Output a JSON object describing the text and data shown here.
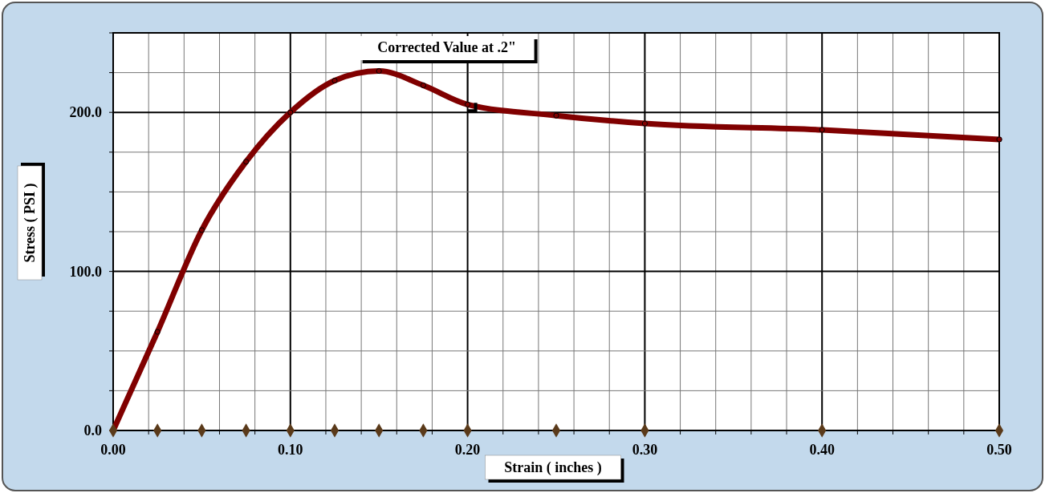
{
  "chart_data": {
    "type": "line",
    "xlabel": "Strain ( inches )",
    "ylabel": "Stress ( PSI )",
    "annotations": [
      {
        "text": "Corrected Value at .2\"",
        "x": 0.2,
        "y": 205
      }
    ],
    "xlim": [
      0,
      0.5
    ],
    "ylim": [
      0,
      250
    ],
    "xticks": [
      {
        "value": 0,
        "label": "0.00"
      },
      {
        "value": 0.02,
        "label": null
      },
      {
        "value": 0.04,
        "label": null
      },
      {
        "value": 0.06,
        "label": null
      },
      {
        "value": 0.08,
        "label": null
      },
      {
        "value": 0.1,
        "label": "0.10"
      },
      {
        "value": 0.12,
        "label": null
      },
      {
        "value": 0.14,
        "label": null
      },
      {
        "value": 0.16,
        "label": null
      },
      {
        "value": 0.18,
        "label": null
      },
      {
        "value": 0.2,
        "label": "0.20"
      },
      {
        "value": 0.22,
        "label": null
      },
      {
        "value": 0.24,
        "label": null
      },
      {
        "value": 0.26,
        "label": null
      },
      {
        "value": 0.28,
        "label": null
      },
      {
        "value": 0.3,
        "label": "0.30"
      },
      {
        "value": 0.32,
        "label": null
      },
      {
        "value": 0.34,
        "label": null
      },
      {
        "value": 0.36,
        "label": null
      },
      {
        "value": 0.38,
        "label": null
      },
      {
        "value": 0.4,
        "label": "0.40"
      },
      {
        "value": 0.42,
        "label": null
      },
      {
        "value": 0.44,
        "label": null
      },
      {
        "value": 0.46,
        "label": null
      },
      {
        "value": 0.48,
        "label": null
      },
      {
        "value": 0.5,
        "label": "0.50"
      }
    ],
    "yticks": [
      {
        "value": 0,
        "label": "0.0"
      },
      {
        "value": 25,
        "label": null
      },
      {
        "value": 50,
        "label": null
      },
      {
        "value": 75,
        "label": null
      },
      {
        "value": 100,
        "label": "100.0"
      },
      {
        "value": 125,
        "label": null
      },
      {
        "value": 150,
        "label": null
      },
      {
        "value": 175,
        "label": null
      },
      {
        "value": 200,
        "label": "200.0"
      },
      {
        "value": 225,
        "label": null
      },
      {
        "value": 250,
        "label": null
      }
    ],
    "grid": true,
    "series": [
      {
        "color": "#800000",
        "marker": "circle",
        "line_style": "solid",
        "x": [
          0,
          0.025,
          0.05,
          0.075,
          0.1,
          0.125,
          0.15,
          0.175,
          0.2,
          0.25,
          0.3,
          0.4,
          0.5
        ],
        "values": [
          0,
          62,
          126,
          169,
          200,
          220,
          226,
          217,
          205,
          198,
          193,
          189,
          183
        ]
      },
      {
        "type": "scatter",
        "color": "#5a3a1a",
        "marker": "diamond",
        "x": [
          0,
          0.025,
          0.05,
          0.075,
          0.1,
          0.125,
          0.15,
          0.175,
          0.2,
          0.25,
          0.3,
          0.4,
          0.5
        ],
        "values": [
          0,
          0,
          0,
          0,
          0,
          0,
          0,
          0,
          0,
          0,
          0,
          0,
          0
        ]
      }
    ]
  }
}
